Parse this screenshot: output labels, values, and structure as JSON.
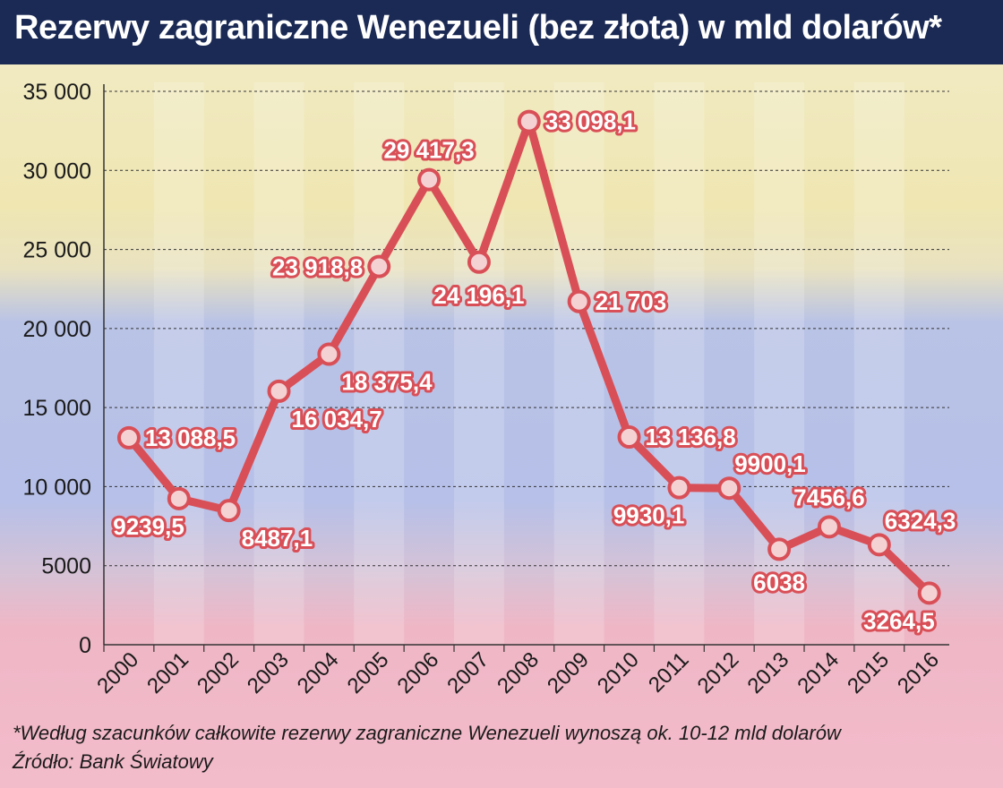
{
  "title": "Rezerwy zagraniczne Wenezueli (bez złota) w mld dolarów*",
  "footnote": "*Według szacunków całkowite rezerwy zagraniczne Wenezueli wynoszą ok. 10-12 mld dolarów",
  "source": "Źródło: Bank Światowy",
  "colors": {
    "line": "#d94f57",
    "marker_fill": "#f4d2d4",
    "label_text": "#ffffff",
    "label_outline": "#d94f57",
    "title_bg": "#1b2a55"
  },
  "chart_data": {
    "type": "line",
    "title": "Rezerwy zagraniczne Wenezueli (bez złota) w mld dolarów*",
    "xlabel": "",
    "ylabel": "",
    "ylim": [
      0,
      35000
    ],
    "y_ticks": [
      0,
      5000,
      10000,
      15000,
      20000,
      25000,
      30000,
      35000
    ],
    "y_tick_labels": [
      "0",
      "5000",
      "10 000",
      "15 000",
      "20 000",
      "25 000",
      "30 000",
      "35 000"
    ],
    "grid": "horizontal dashed",
    "legend": "none",
    "categories": [
      "2000",
      "2001",
      "2002",
      "2003",
      "2004",
      "2005",
      "2006",
      "2007",
      "2008",
      "2009",
      "2010",
      "2011",
      "2012",
      "2013",
      "2014",
      "2015",
      "2016"
    ],
    "values": [
      13088.5,
      9239.5,
      8487.1,
      16034.7,
      18375.4,
      23918.8,
      29417.3,
      24196.1,
      33098.1,
      21703,
      13136.8,
      9930.1,
      9900.1,
      6038,
      7456.6,
      6324.3,
      3264.5
    ],
    "value_labels": [
      "13 088,5",
      "9239,5",
      "8487,1",
      "16 034,7",
      "18 375,4",
      "23 918,8",
      "29 417,3",
      "24 196,1",
      "33 098,1",
      "21 703",
      "13 136,8",
      "9930,1",
      "9900,1",
      "6038",
      "7456,6",
      "6324,3",
      "3264,5"
    ]
  }
}
